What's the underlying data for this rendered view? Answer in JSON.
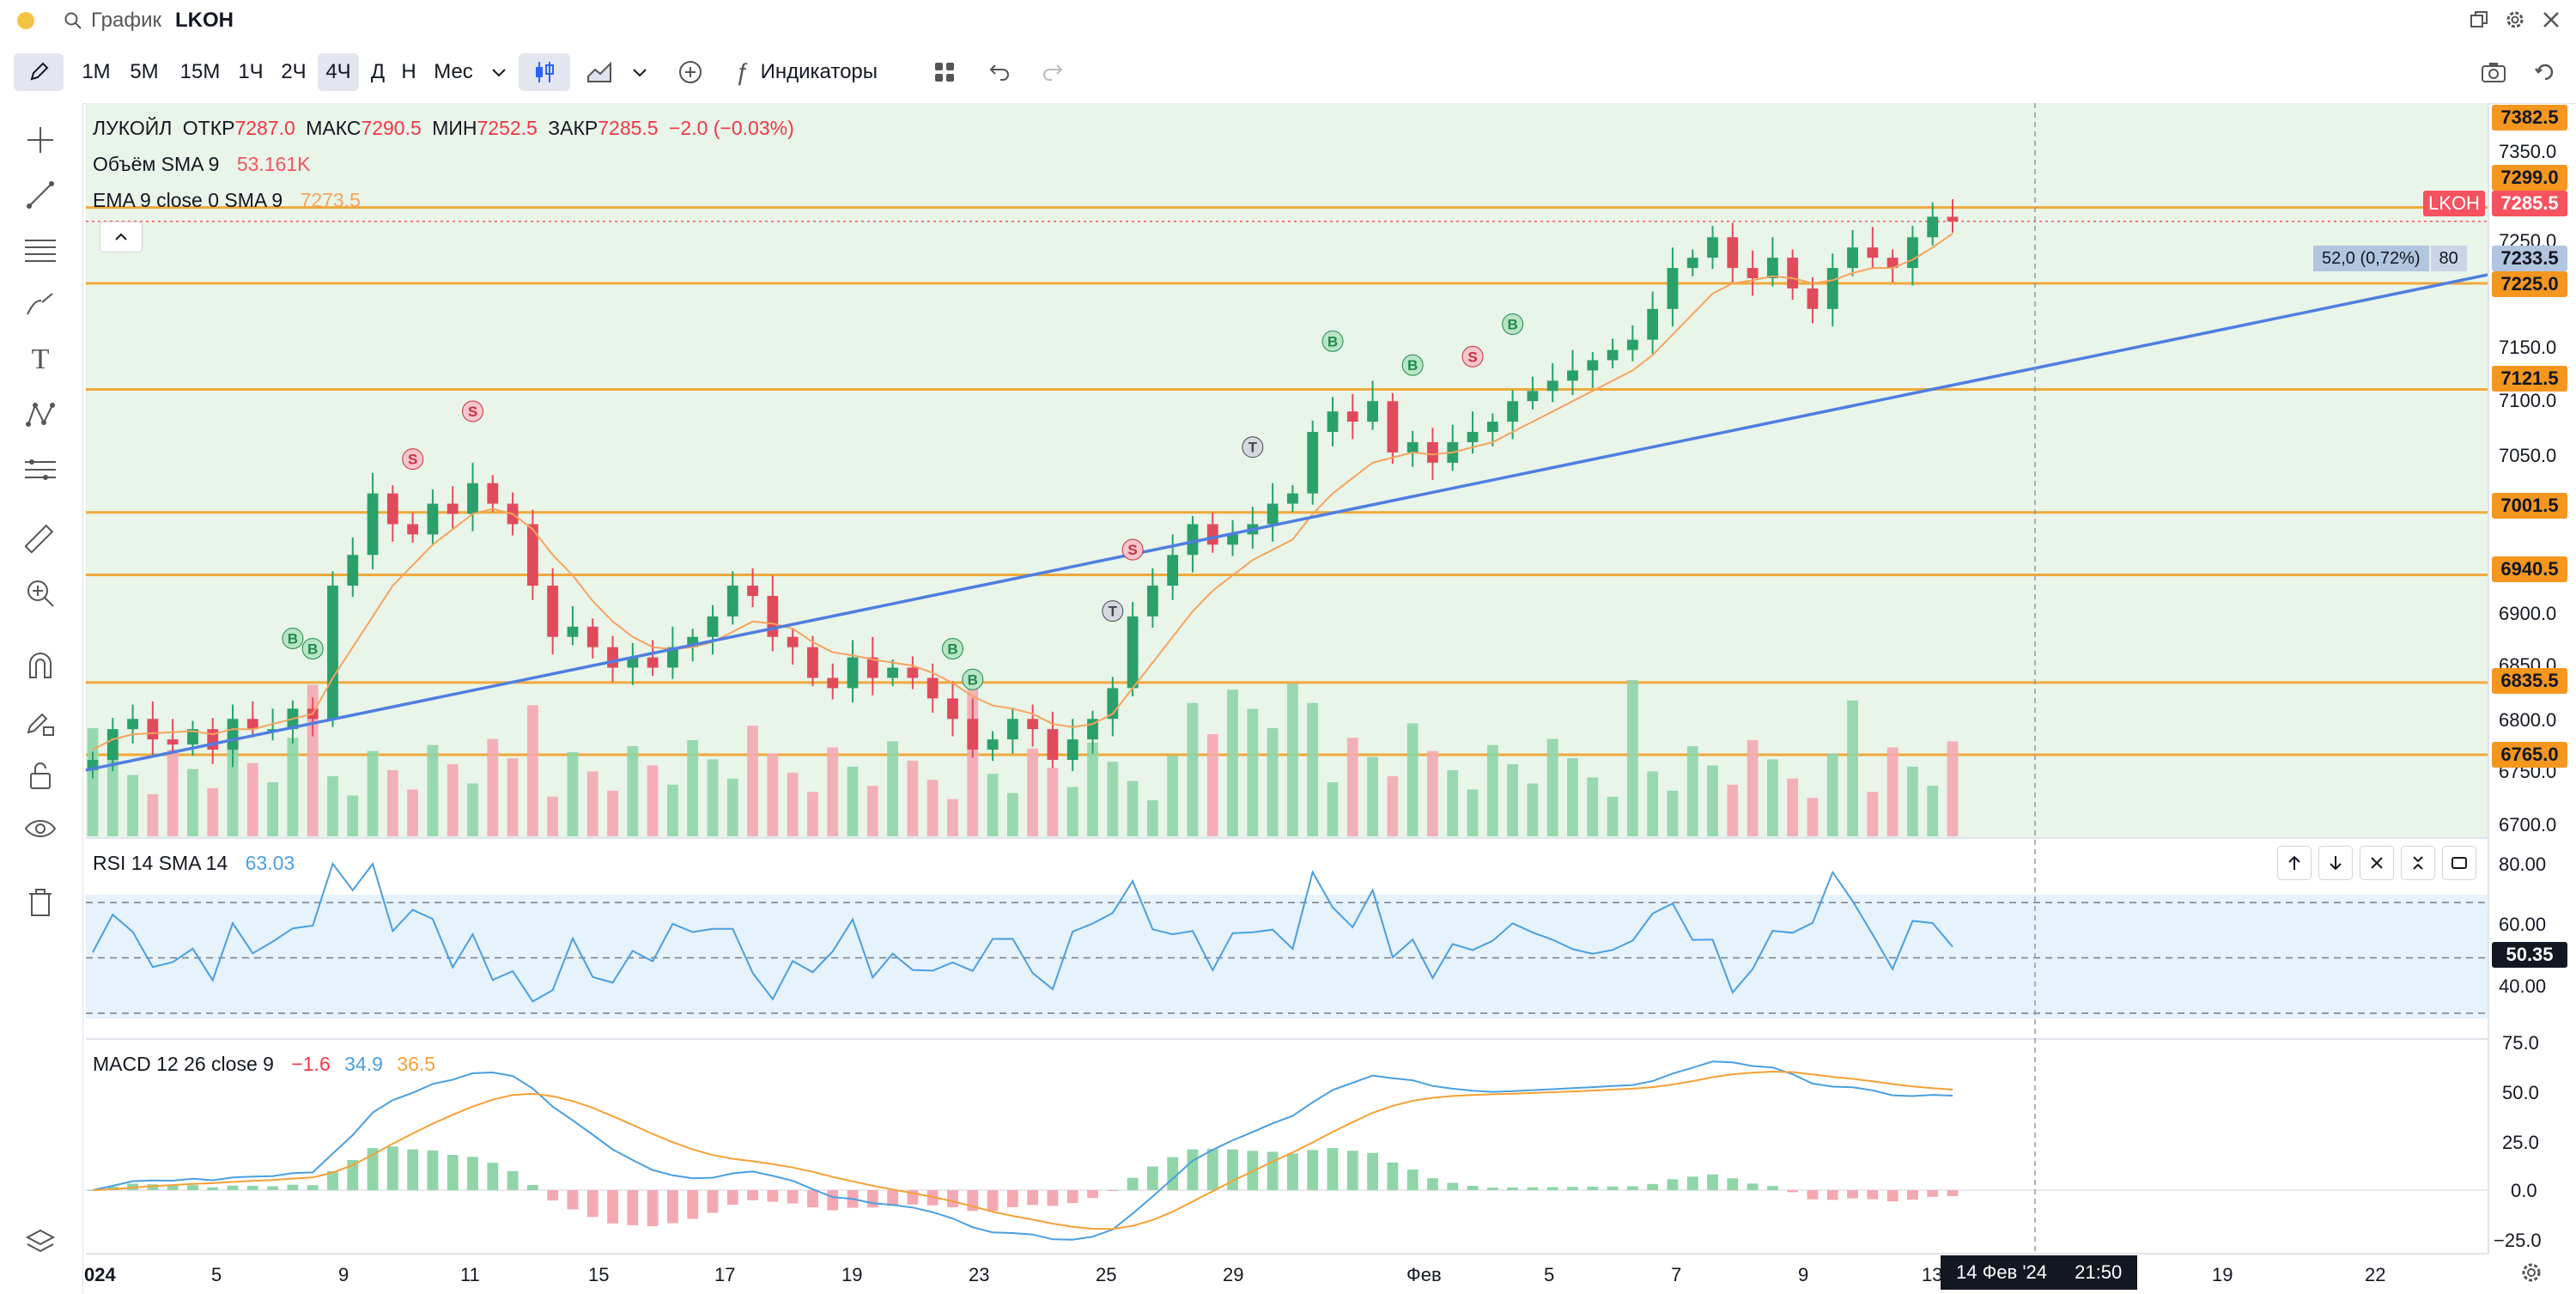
{
  "window": {
    "search_title": "График",
    "symbol": "LKOH"
  },
  "toolbar": {
    "intervals": [
      "1М",
      "5М",
      "15М",
      "1Ч",
      "2Ч",
      "4Ч",
      "Д",
      "Н",
      "Мес"
    ],
    "active_interval": "4Ч",
    "indicators_label": "Индикаторы"
  },
  "legend": {
    "name": "ЛУКОЙЛ",
    "open_label": "ОТКР",
    "open": "7287.0",
    "high_label": "МАКС",
    "high": "7290.5",
    "low_label": "МИН",
    "low": "7252.5",
    "close_label": "ЗАКР",
    "close": "7285.5",
    "change": "−2.0 (−0.03%)",
    "volume_label": "Объём SMA 9",
    "volume_value": "53.161K",
    "ema_label": "EMA 9 close 0 SMA 9",
    "ema_value": "7273.5",
    "rsi_label": "RSI 14 SMA 14",
    "rsi_value": "63.03",
    "macd_label": "MACD 12 26 close 9",
    "macd_hist": "−1.6",
    "macd_macd": "34.9",
    "macd_signal": "36.5"
  },
  "price_axis": {
    "ticks": [
      "7350.0",
      "7250.0",
      "7150.0",
      "7100.0",
      "7050.0",
      "6900.0",
      "6850.0",
      "6800.0",
      "6750.0",
      "6700.0"
    ],
    "levels": [
      "7382.5",
      "7299.0",
      "7233.5",
      "7225.0",
      "7121.5",
      "7001.5",
      "6940.5",
      "6835.5",
      "6765.0"
    ],
    "last_symbol": "LKOH",
    "last_price": "7285.5",
    "measure_label": "52,0 (0,72%)",
    "measure_bars": "80"
  },
  "rsi_axis": {
    "ticks": [
      "80.00",
      "60.00",
      "40.00"
    ],
    "current": "50.35"
  },
  "macd_axis": {
    "ticks": [
      "75.0",
      "50.0",
      "25.0",
      "0.0",
      "−25.0"
    ]
  },
  "time_axis": {
    "labels": [
      "024",
      "5",
      "9",
      "11",
      "15",
      "17",
      "19",
      "23",
      "25",
      "29",
      "Фев",
      "5",
      "7",
      "9",
      "13",
      "19",
      "22"
    ],
    "crosshair_label": "14 Фев '24",
    "crosshair_time": "21:50"
  },
  "signals": [
    {
      "text": "B"
    },
    {
      "text": "B"
    },
    {
      "text": "S"
    },
    {
      "text": "S"
    },
    {
      "text": "B"
    },
    {
      "text": "B"
    },
    {
      "text": "T"
    },
    {
      "text": "S"
    },
    {
      "text": "T"
    },
    {
      "text": "B"
    },
    {
      "text": "B"
    },
    {
      "text": "S"
    },
    {
      "text": "B"
    }
  ],
  "chart_data": {
    "type": "candlestick",
    "symbol": "LKOH",
    "interval": "4Ч",
    "price_range": [
      6680,
      7400
    ],
    "close_series": [
      6760,
      6790,
      6800,
      6780,
      6775,
      6790,
      6770,
      6800,
      6790,
      6790,
      6810,
      6800,
      6930,
      6960,
      7020,
      6990,
      6980,
      7010,
      7000,
      7030,
      7010,
      6990,
      6930,
      6880,
      6890,
      6870,
      6850,
      6860,
      6850,
      6870,
      6880,
      6900,
      6930,
      6920,
      6880,
      6870,
      6840,
      6830,
      6860,
      6840,
      6850,
      6840,
      6820,
      6800,
      6770,
      6780,
      6800,
      6790,
      6760,
      6780,
      6800,
      6830,
      6900,
      6930,
      6960,
      6990,
      6970,
      6980,
      6990,
      7010,
      7020,
      7080,
      7100,
      7090,
      7110,
      7060,
      7070,
      7050,
      7070,
      7080,
      7090,
      7110,
      7120,
      7130,
      7140,
      7150,
      7160,
      7170,
      7200,
      7240,
      7250,
      7270,
      7240,
      7230,
      7250,
      7220,
      7200,
      7240,
      7260,
      7250,
      7240,
      7270,
      7290,
      7285.5
    ],
    "ema9_series": [
      6770,
      6780,
      6785,
      6786,
      6787,
      6788,
      6785,
      6790,
      6790,
      6795,
      6800,
      6805,
      6840,
      6870,
      6900,
      6930,
      6950,
      6970,
      6985,
      7000,
      7005,
      7000,
      6985,
      6960,
      6940,
      6915,
      6895,
      6880,
      6870,
      6868,
      6870,
      6875,
      6885,
      6895,
      6893,
      6888,
      6875,
      6865,
      6862,
      6858,
      6855,
      6852,
      6845,
      6835,
      6822,
      6813,
      6810,
      6805,
      6795,
      6792,
      6795,
      6805,
      6830,
      6855,
      6880,
      6905,
      6925,
      6940,
      6955,
      6965,
      6975,
      7000,
      7020,
      7035,
      7050,
      7055,
      7060,
      7058,
      7060,
      7065,
      7070,
      7080,
      7090,
      7100,
      7110,
      7120,
      7130,
      7140,
      7155,
      7175,
      7195,
      7215,
      7225,
      7228,
      7232,
      7230,
      7225,
      7228,
      7235,
      7240,
      7240,
      7248,
      7260,
      7273.5
    ],
    "horizontal_levels": [
      7299.0,
      7225.0,
      7121.5,
      7001.5,
      6940.5,
      6835.5,
      6765.0
    ],
    "trendline": {
      "from": 6750,
      "to": 7233.5
    },
    "rsi": {
      "range": [
        20,
        90
      ],
      "bands": [
        70,
        50,
        30
      ],
      "current": 50.35
    },
    "macd": {
      "range": [
        -35,
        80
      ],
      "macd": 34.9,
      "signal": 36.5,
      "hist": -1.6
    }
  }
}
